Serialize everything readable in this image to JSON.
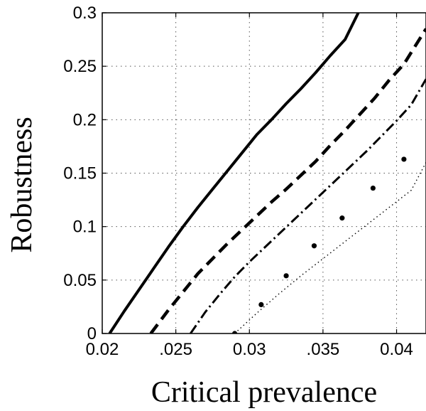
{
  "chart_data": {
    "type": "line",
    "title": "",
    "xlabel": "Critical prevalence",
    "ylabel": "Robustness",
    "xlim": [
      0.02,
      0.042
    ],
    "ylim": [
      0,
      0.3
    ],
    "xticks": [
      0.02,
      0.025,
      0.03,
      0.035,
      0.04
    ],
    "xtick_labels": [
      "0.02",
      ".025",
      "0.03",
      ".035",
      "0.04"
    ],
    "yticks": [
      0,
      0.05,
      0.1,
      0.15,
      0.2,
      0.25,
      0.3
    ],
    "ytick_labels": [
      "0",
      "0.05",
      "0.1",
      "0.15",
      "0.2",
      "0.25",
      "0.3"
    ],
    "grid": true,
    "legend": "none",
    "series": [
      {
        "style": "solid",
        "x": [
          0.0205,
          0.0215,
          0.0225,
          0.0235,
          0.0245,
          0.0255,
          0.0265,
          0.0275,
          0.0285,
          0.0295,
          0.0305,
          0.0315,
          0.0325,
          0.0335,
          0.0345,
          0.0355,
          0.0365,
          0.0374
        ],
        "y": [
          0,
          0.021,
          0.041,
          0.061,
          0.081,
          0.1,
          0.118,
          0.135,
          0.152,
          0.169,
          0.186,
          0.2,
          0.215,
          0.229,
          0.244,
          0.26,
          0.275,
          0.3
        ]
      },
      {
        "style": "dashed",
        "x": [
          0.0233,
          0.0245,
          0.0255,
          0.0265,
          0.0275,
          0.0285,
          0.0295,
          0.0305,
          0.0315,
          0.0325,
          0.0335,
          0.0345,
          0.0355,
          0.0365,
          0.0375,
          0.0385,
          0.0395,
          0.0405,
          0.042
        ],
        "y": [
          0,
          0.022,
          0.039,
          0.056,
          0.07,
          0.084,
          0.097,
          0.11,
          0.123,
          0.135,
          0.148,
          0.161,
          0.176,
          0.19,
          0.205,
          0.22,
          0.237,
          0.252,
          0.285
        ]
      },
      {
        "style": "dashdot",
        "x": [
          0.026,
          0.027,
          0.028,
          0.029,
          0.03,
          0.031,
          0.032,
          0.033,
          0.034,
          0.035,
          0.036,
          0.037,
          0.038,
          0.039,
          0.04,
          0.041,
          0.042
        ],
        "y": [
          0,
          0.02,
          0.037,
          0.053,
          0.067,
          0.08,
          0.093,
          0.106,
          0.119,
          0.132,
          0.145,
          0.158,
          0.171,
          0.185,
          0.199,
          0.214,
          0.238
        ]
      },
      {
        "style": "dotted-markers",
        "x": [
          0.029,
          0.0305,
          0.032,
          0.0335,
          0.035,
          0.0365,
          0.038,
          0.0395,
          0.041,
          0.042
        ],
        "y": [
          0,
          0.019,
          0.037,
          0.054,
          0.07,
          0.086,
          0.102,
          0.118,
          0.134,
          0.16
        ],
        "marker_x": [
          0.029,
          0.0308,
          0.0325,
          0.0344,
          0.0363,
          0.0384,
          0.0405
        ],
        "marker_y": [
          0,
          0.027,
          0.054,
          0.082,
          0.108,
          0.136,
          0.163
        ]
      }
    ]
  }
}
